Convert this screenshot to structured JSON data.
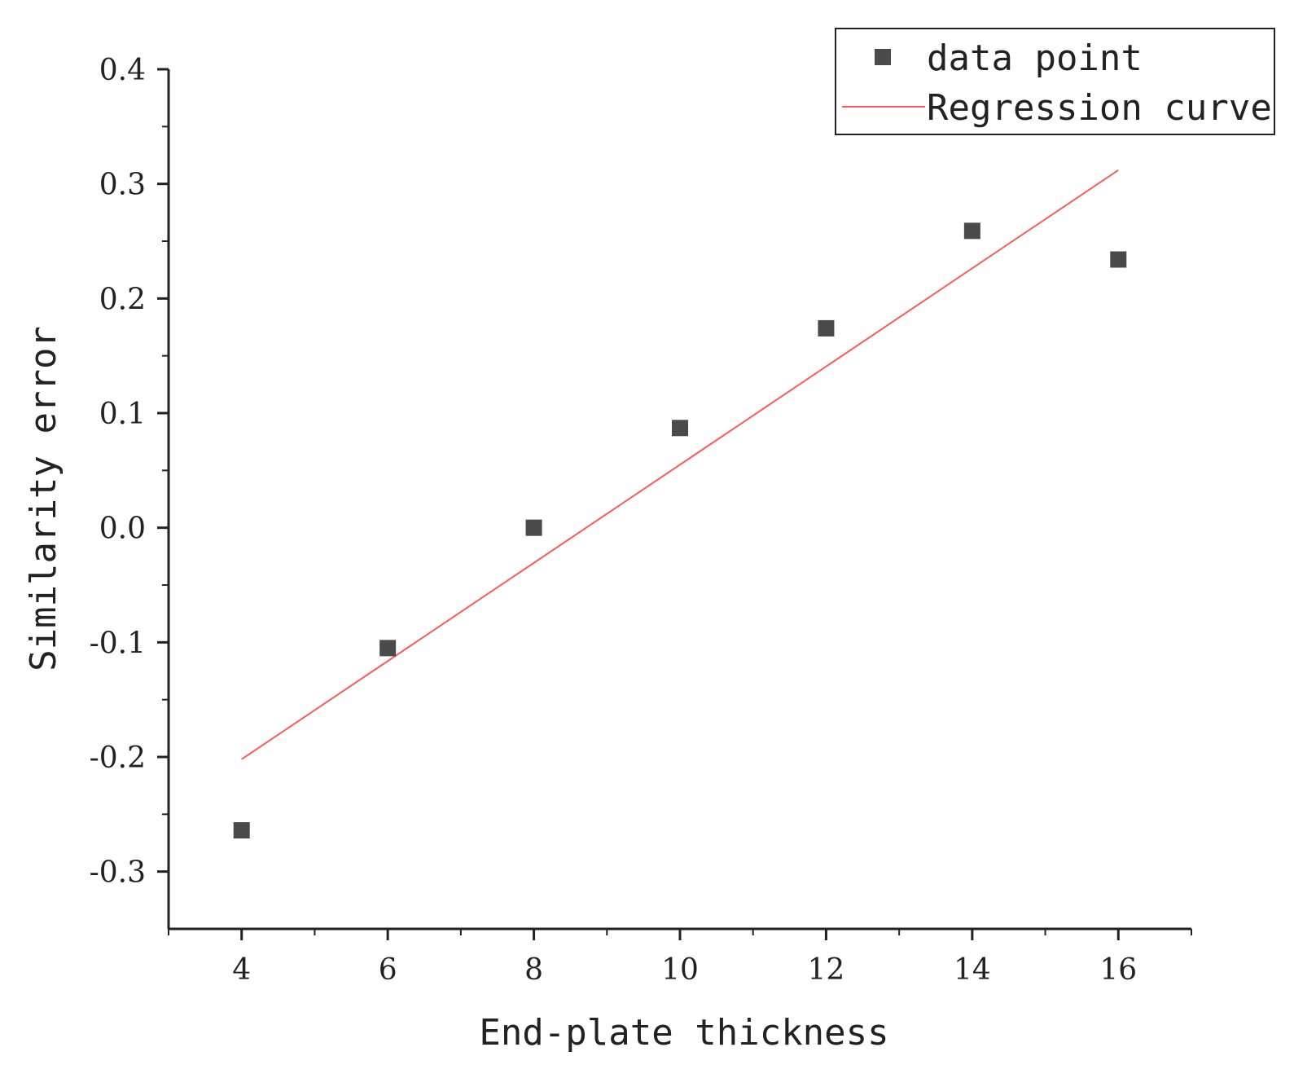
{
  "chart_data": {
    "type": "scatter",
    "xlabel": "End-plate thickness",
    "ylabel": "Similarity error",
    "xlim": [
      3,
      17
    ],
    "ylim": [
      -0.35,
      0.4
    ],
    "x_ticks": [
      4,
      6,
      8,
      10,
      12,
      14,
      16
    ],
    "x_tick_labels": [
      "4",
      "6",
      "8",
      "10",
      "12",
      "14",
      "16"
    ],
    "y_ticks": [
      -0.3,
      -0.2,
      -0.1,
      0.0,
      0.1,
      0.2,
      0.3,
      0.4
    ],
    "y_tick_labels": [
      "-0.3",
      "-0.2",
      "-0.1",
      "0.0",
      "0.1",
      "0.2",
      "0.3",
      "0.4"
    ],
    "grid": false,
    "legend_position": "top-right",
    "series": [
      {
        "name": "data point",
        "kind": "scatter",
        "marker": "square",
        "color": "#4a4a4a",
        "x": [
          4,
          6,
          8,
          10,
          12,
          14,
          16
        ],
        "y": [
          -0.264,
          -0.105,
          0.0,
          0.087,
          0.174,
          0.259,
          0.234
        ]
      },
      {
        "name": "Regression curve",
        "kind": "line",
        "color": "#ff5a5a",
        "x": [
          4,
          16
        ],
        "y": [
          -0.202,
          0.312
        ]
      }
    ]
  }
}
